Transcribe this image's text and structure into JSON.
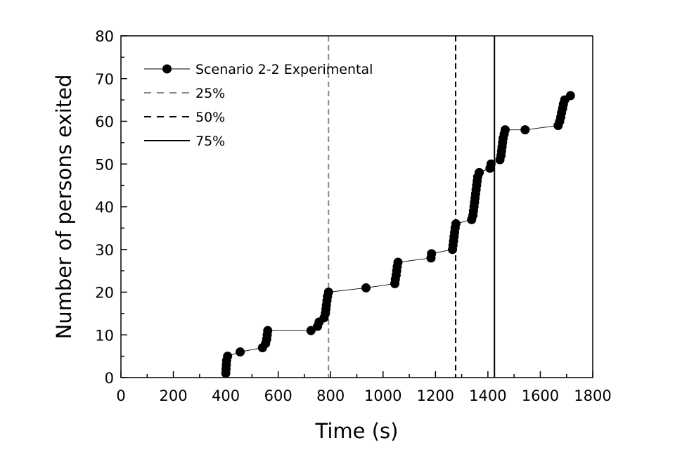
{
  "chart_data": {
    "type": "scatter",
    "title": "",
    "xlabel": "Time (s)",
    "ylabel": "Number of persons exited",
    "xlim": [
      0,
      1800
    ],
    "ylim": [
      0,
      80
    ],
    "x_ticks": [
      "0",
      "200",
      "400",
      "600",
      "800",
      "1000",
      "1200",
      "1400",
      "1600",
      "1800"
    ],
    "y_ticks": [
      "0",
      "10",
      "20",
      "30",
      "40",
      "50",
      "60",
      "70",
      "80"
    ],
    "grid": false,
    "legend_position": "top-left",
    "series": [
      {
        "name": "Scenario 2-2 Experimental",
        "style": "line-with-markers",
        "color": "#000000",
        "points": [
          [
            400,
            1
          ],
          [
            401,
            2
          ],
          [
            402,
            3
          ],
          [
            403,
            4
          ],
          [
            407,
            5
          ],
          [
            455,
            6
          ],
          [
            540,
            7
          ],
          [
            552,
            8
          ],
          [
            556,
            9
          ],
          [
            558,
            10
          ],
          [
            560,
            11
          ],
          [
            725,
            11
          ],
          [
            750,
            12
          ],
          [
            756,
            13
          ],
          [
            775,
            14
          ],
          [
            780,
            15
          ],
          [
            782,
            16
          ],
          [
            784,
            17
          ],
          [
            786,
            18
          ],
          [
            788,
            19
          ],
          [
            792,
            20
          ],
          [
            935,
            21
          ],
          [
            1045,
            22
          ],
          [
            1047,
            23
          ],
          [
            1050,
            24
          ],
          [
            1052,
            25
          ],
          [
            1054,
            26
          ],
          [
            1057,
            27
          ],
          [
            1183,
            28
          ],
          [
            1185,
            29
          ],
          [
            1265,
            30
          ],
          [
            1267,
            31
          ],
          [
            1269,
            32
          ],
          [
            1271,
            33
          ],
          [
            1273,
            34
          ],
          [
            1275,
            35
          ],
          [
            1278,
            36
          ],
          [
            1338,
            37
          ],
          [
            1343,
            38
          ],
          [
            1345,
            39
          ],
          [
            1347,
            40
          ],
          [
            1349,
            41
          ],
          [
            1351,
            42
          ],
          [
            1353,
            43
          ],
          [
            1355,
            44
          ],
          [
            1357,
            45
          ],
          [
            1359,
            46
          ],
          [
            1361,
            47
          ],
          [
            1367,
            48
          ],
          [
            1408,
            49
          ],
          [
            1412,
            50
          ],
          [
            1446,
            51
          ],
          [
            1450,
            52
          ],
          [
            1452,
            53
          ],
          [
            1454,
            54
          ],
          [
            1456,
            55
          ],
          [
            1458,
            56
          ],
          [
            1462,
            57
          ],
          [
            1466,
            58
          ],
          [
            1542,
            58
          ],
          [
            1668,
            59
          ],
          [
            1674,
            60
          ],
          [
            1678,
            61
          ],
          [
            1681,
            62
          ],
          [
            1685,
            63
          ],
          [
            1688,
            64
          ],
          [
            1693,
            65
          ],
          [
            1715,
            66
          ]
        ]
      },
      {
        "name": "25%",
        "style": "vertical-dashed-line",
        "color": "#888888",
        "x": 792
      },
      {
        "name": "50%",
        "style": "vertical-dashed-line",
        "color": "#000000",
        "x": 1277
      },
      {
        "name": "75%",
        "style": "vertical-solid-line",
        "color": "#000000",
        "x": 1425
      }
    ]
  }
}
